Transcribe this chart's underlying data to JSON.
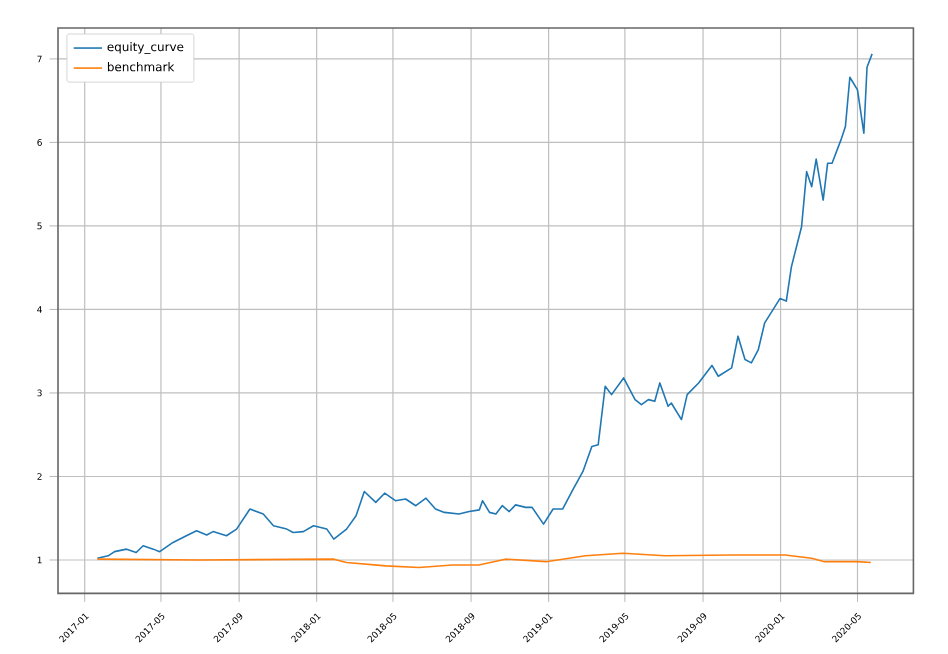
{
  "chart_data": {
    "type": "line",
    "xlim": [
      "2016-11-20",
      "2020-07-28"
    ],
    "ylim": [
      0.6,
      7.37
    ],
    "xticks": [
      "2017-01",
      "2017-05",
      "2017-09",
      "2018-01",
      "2018-05",
      "2018-09",
      "2019-01",
      "2019-05",
      "2019-09",
      "2020-01",
      "2020-05"
    ],
    "yticks": [
      1,
      2,
      3,
      4,
      5,
      6,
      7
    ],
    "grid": true,
    "legend": "top left",
    "line_style": "solid",
    "series": [
      {
        "name": "equity_curve",
        "color": "#1f77b4",
        "x": [
          "2017-01-21",
          "2017-02-07",
          "2017-02-17",
          "2017-03-08",
          "2017-03-23",
          "2017-04-03",
          "2017-04-19",
          "2017-04-29",
          "2017-05-20",
          "2017-06-10",
          "2017-06-26",
          "2017-07-12",
          "2017-07-22",
          "2017-08-12",
          "2017-08-28",
          "2017-09-18",
          "2017-10-09",
          "2017-10-25",
          "2017-11-15",
          "2017-11-25",
          "2017-12-11",
          "2017-12-27",
          "2018-01-17",
          "2018-01-28",
          "2018-02-17",
          "2018-03-04",
          "2018-03-17",
          "2018-04-04",
          "2018-04-18",
          "2018-05-05",
          "2018-05-21",
          "2018-06-06",
          "2018-06-22",
          "2018-07-07",
          "2018-07-21",
          "2018-08-13",
          "2018-08-29",
          "2018-09-14",
          "2018-09-19",
          "2018-09-30",
          "2018-10-10",
          "2018-10-20",
          "2018-10-31",
          "2018-11-10",
          "2018-11-26",
          "2018-12-06",
          "2018-12-24",
          "2019-01-08",
          "2019-01-23",
          "2019-02-08",
          "2019-02-24",
          "2019-03-10",
          "2019-03-20",
          "2019-03-31",
          "2019-04-10",
          "2019-04-29",
          "2019-05-17",
          "2019-05-27",
          "2019-06-07",
          "2019-06-17",
          "2019-06-25",
          "2019-07-08",
          "2019-07-13",
          "2019-07-29",
          "2019-08-07",
          "2019-08-25",
          "2019-09-15",
          "2019-09-25",
          "2019-10-16",
          "2019-10-26",
          "2019-11-06",
          "2019-11-16",
          "2019-11-27",
          "2019-12-07",
          "2019-12-31",
          "2020-01-10",
          "2020-01-18",
          "2020-02-03",
          "2020-02-11",
          "2020-02-19",
          "2020-02-26",
          "2020-03-08",
          "2020-03-15",
          "2020-03-22",
          "2020-04-05",
          "2020-04-12",
          "2020-04-19",
          "2020-05-01",
          "2020-05-11",
          "2020-05-16",
          "2020-05-24"
        ],
        "values": [
          1.02,
          1.05,
          1.1,
          1.13,
          1.09,
          1.17,
          1.13,
          1.1,
          1.21,
          1.29,
          1.35,
          1.3,
          1.34,
          1.29,
          1.37,
          1.61,
          1.55,
          1.41,
          1.37,
          1.33,
          1.34,
          1.41,
          1.37,
          1.25,
          1.37,
          1.53,
          1.82,
          1.69,
          1.8,
          1.71,
          1.73,
          1.65,
          1.74,
          1.61,
          1.57,
          1.55,
          1.58,
          1.6,
          1.71,
          1.57,
          1.55,
          1.65,
          1.58,
          1.66,
          1.63,
          1.63,
          1.43,
          1.61,
          1.61,
          1.84,
          2.06,
          2.36,
          2.38,
          3.08,
          2.98,
          3.18,
          2.92,
          2.86,
          2.92,
          2.9,
          3.12,
          2.84,
          2.88,
          2.68,
          2.98,
          3.12,
          3.33,
          3.2,
          3.3,
          3.68,
          3.4,
          3.36,
          3.52,
          3.84,
          4.13,
          4.1,
          4.51,
          4.99,
          5.65,
          5.47,
          5.8,
          5.31,
          5.75,
          5.75,
          6.03,
          6.19,
          6.78,
          6.63,
          6.11,
          6.9,
          7.06
        ]
      },
      {
        "name": "benchmark",
        "color": "#ff7f0e",
        "x": [
          "2017-01-21",
          "2017-07-01",
          "2018-01-28",
          "2018-02-17",
          "2018-04-20",
          "2018-06-11",
          "2018-08-03",
          "2018-09-13",
          "2018-10-25",
          "2018-12-28",
          "2019-02-28",
          "2019-04-28",
          "2019-07-03",
          "2019-10-16",
          "2020-01-08",
          "2020-02-19",
          "2020-03-10",
          "2020-05-01",
          "2020-05-22"
        ],
        "values": [
          1.01,
          1.0,
          1.01,
          0.97,
          0.93,
          0.91,
          0.94,
          0.94,
          1.01,
          0.98,
          1.05,
          1.08,
          1.05,
          1.06,
          1.06,
          1.02,
          0.98,
          0.98,
          0.97
        ]
      }
    ]
  }
}
